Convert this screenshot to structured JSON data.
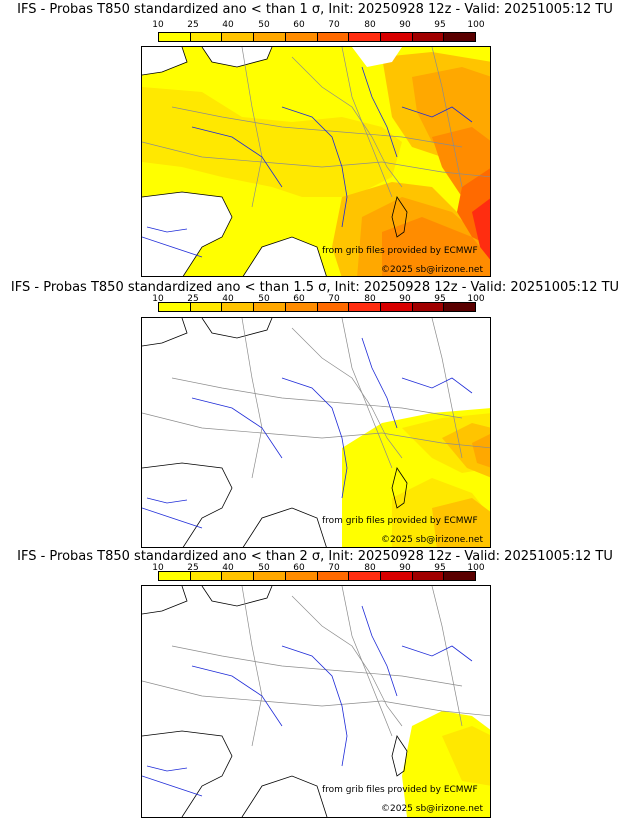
{
  "colors": {
    "c10": "#ffff00",
    "c25": "#ffe800",
    "c40": "#ffc400",
    "c50": "#ffa800",
    "c60": "#ff8c00",
    "c70": "#ff6a00",
    "c80": "#ff2d10",
    "c90": "#d80000",
    "c95": "#a00000",
    "c100": "#5a0000",
    "river": "#1e2bd8",
    "border": "#8c8c8c",
    "coast": "#000000"
  },
  "colorbar": {
    "ticks": [
      "10",
      "25",
      "40",
      "50",
      "60",
      "70",
      "80",
      "90",
      "95",
      "100"
    ]
  },
  "credits": {
    "source": "from grib files provided by ECMWF",
    "copyright": "©2025 sb@irizone.net"
  },
  "panels": [
    {
      "title": "IFS - Probas T850  standardized ano < than 1 σ, Init: 20250928 12z - Valid: 20251005:12 TU"
    },
    {
      "title": "IFS - Probas T850  standardized ano < than 1.5 σ, Init: 20250928 12z - Valid: 20251005:12 TU"
    },
    {
      "title": "IFS - Probas T850  standardized ano < than 2 σ, Init: 20250928 12z - Valid: 20251005:12 TU"
    }
  ]
}
